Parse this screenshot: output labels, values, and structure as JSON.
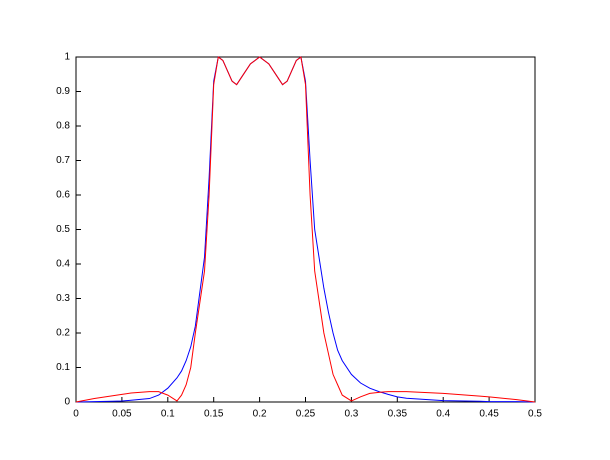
{
  "chart_data": {
    "type": "line",
    "x": [
      0,
      0.02,
      0.04,
      0.05,
      0.06,
      0.08,
      0.09,
      0.1,
      0.11,
      0.115,
      0.12,
      0.125,
      0.13,
      0.14,
      0.145,
      0.15,
      0.155,
      0.16,
      0.17,
      0.175,
      0.18,
      0.19,
      0.2,
      0.21,
      0.22,
      0.225,
      0.23,
      0.24,
      0.245,
      0.25,
      0.255,
      0.26,
      0.27,
      0.275,
      0.28,
      0.285,
      0.29,
      0.3,
      0.31,
      0.32,
      0.33,
      0.34,
      0.35,
      0.36,
      0.4,
      0.44,
      0.45,
      0.48,
      0.5
    ],
    "series": [
      {
        "color": "#0000ff",
        "values": [
          0,
          0.001,
          0.002,
          0.003,
          0.005,
          0.01,
          0.02,
          0.04,
          0.07,
          0.09,
          0.12,
          0.16,
          0.22,
          0.42,
          0.65,
          0.93,
          1,
          0.99,
          0.93,
          0.92,
          0.94,
          0.98,
          1,
          0.98,
          0.94,
          0.92,
          0.93,
          0.99,
          1,
          0.93,
          0.7,
          0.5,
          0.33,
          0.26,
          0.2,
          0.15,
          0.12,
          0.08,
          0.055,
          0.04,
          0.03,
          0.022,
          0.015,
          0.011,
          0.004,
          0.002,
          0.001,
          0.001,
          0
        ]
      },
      {
        "color": "#ff0000",
        "values": [
          0,
          0.01,
          0.018,
          0.022,
          0.026,
          0.03,
          0.03,
          0.02,
          0.003,
          0.02,
          0.05,
          0.1,
          0.2,
          0.38,
          0.6,
          0.92,
          1,
          0.99,
          0.93,
          0.92,
          0.94,
          0.98,
          1,
          0.98,
          0.94,
          0.92,
          0.93,
          0.99,
          1,
          0.92,
          0.6,
          0.38,
          0.2,
          0.14,
          0.08,
          0.05,
          0.02,
          0.003,
          0.015,
          0.025,
          0.028,
          0.03,
          0.03,
          0.03,
          0.025,
          0.017,
          0.015,
          0.007,
          0
        ]
      }
    ],
    "xlim": [
      0,
      0.5
    ],
    "ylim": [
      0,
      1
    ],
    "xticks": [
      0,
      0.05,
      0.1,
      0.15,
      0.2,
      0.25,
      0.3,
      0.35,
      0.4,
      0.45,
      0.5
    ],
    "yticks": [
      0,
      0.1,
      0.2,
      0.3,
      0.4,
      0.5,
      0.6,
      0.7,
      0.8,
      0.9,
      1
    ],
    "grid": false
  }
}
